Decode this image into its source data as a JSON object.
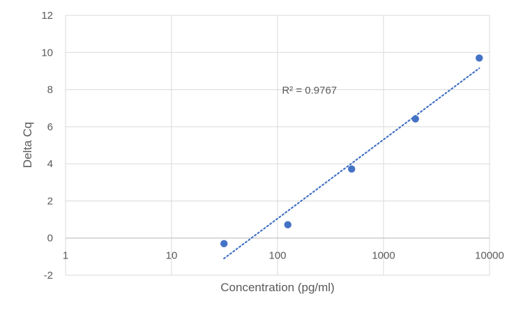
{
  "chart_data": {
    "type": "scatter",
    "title": "",
    "xlabel": "Concentration (pg/ml)",
    "ylabel": "Delta Cq",
    "x_scale": "log",
    "xlim": [
      1,
      10000
    ],
    "ylim": [
      -2,
      12
    ],
    "grid": true,
    "legend": "none",
    "x_tick_values": [
      1,
      10,
      100,
      1000,
      10000
    ],
    "x_tick_labels": [
      "1",
      "10",
      "100",
      "1000",
      "10000"
    ],
    "y_tick_values": [
      -2,
      0,
      2,
      4,
      6,
      8,
      10,
      12
    ],
    "y_tick_labels": [
      "-2",
      "0",
      "2",
      "4",
      "6",
      "8",
      "10",
      "12"
    ],
    "series": [
      {
        "points": [
          {
            "x": 31.25,
            "y": -0.3
          },
          {
            "x": 125,
            "y": 0.72
          },
          {
            "x": 500,
            "y": 3.72
          },
          {
            "x": 2000,
            "y": 6.42
          },
          {
            "x": 8000,
            "y": 9.7
          }
        ],
        "color": "#4472c4",
        "trendline": {
          "type": "logarithmic",
          "x_range": [
            31.25,
            8000
          ],
          "y_range": [
            -1.1,
            9.15
          ],
          "style": "dotted",
          "color": "#4472c4"
        }
      }
    ],
    "annotations": [
      {
        "text": "R² = 0.9767",
        "x": 200,
        "y": 8
      }
    ]
  }
}
